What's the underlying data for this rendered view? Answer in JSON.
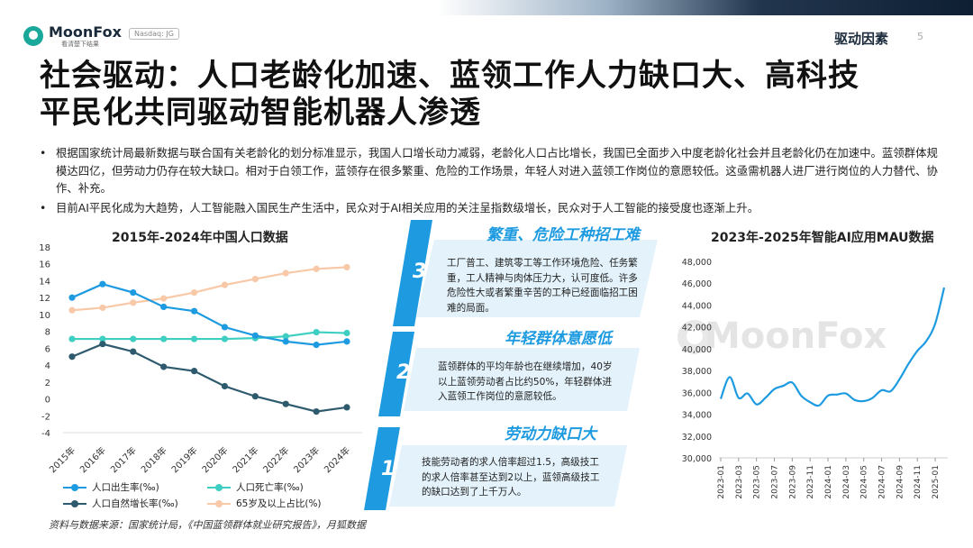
{
  "header": {
    "logo_name": "MoonFox",
    "logo_slogan": "看清楚下结果",
    "nasdaq": "Nasdaq: JG",
    "section": "驱动因素",
    "page": "5"
  },
  "title_lines": [
    "社会驱动：人口老龄化加速、蓝领工作人力缺口大、高科技",
    "平民化共同驱动智能机器人渗透"
  ],
  "bullets": [
    "根据国家统计局最新数据与联合国有关老龄化的划分标准显示，我国人口增长动力减弱，老龄化人口占比增长，我国已全面步入中度老龄化社会并且老龄化仍在加速中。蓝领群体规模达四亿，但劳动力仍存在较大缺口。相对于白领工作，蓝领存在很多繁重、危险的工作场景，年轻人对进入蓝领工作岗位的意愿较低。这亟需机器人进厂进行岗位的人力替代、协作、补充。",
    "目前AI平民化成为大趋势，人工智能融入国民生产生活中，民众对于AI相关应用的关注呈指数级增长，民众对于人工智能的接受度也逐渐上升。"
  ],
  "cards": [
    {
      "num": "3",
      "head": "繁重、危险工种招工难",
      "text": "工厂普工、建筑零工等工作环境危险、任务繁重，工人精神与肉体压力大，认可度低。许多危险性大或者繁重辛苦的工种已经面临招工困难的局面。"
    },
    {
      "num": "2",
      "head": "年轻群体意愿低",
      "text": "蓝领群体的平均年龄也在继续增加，40岁以上蓝领劳动者占比约50%，年轻群体进入蓝领工作岗位的意愿较低。"
    },
    {
      "num": "1",
      "head": "劳动力缺口大",
      "text": "技能劳动者的求人倍率超过1.5，高级技工的求人倍率甚至达到2以上，蓝领高级技工的缺口达到了上千万人。"
    }
  ],
  "source": "资料与数据来源：国家统计局，《中国蓝领群体就业研究报告》，月狐数据",
  "watermark": "MoonFox",
  "colors": {
    "birth": "#1e9be0",
    "death": "#3fcfc2",
    "natural": "#2e5a6e",
    "aged": "#f8c9a8",
    "mau": "#1e9be0",
    "accent": "#1e9be0"
  },
  "chart_data": [
    {
      "type": "line",
      "title": "2015年-2024年中国人口数据",
      "categories": [
        "2015年",
        "2016年",
        "2017年",
        "2018年",
        "2019年",
        "2020年",
        "2021年",
        "2022年",
        "2023年",
        "2024年"
      ],
      "ylim": [
        -4,
        18
      ],
      "yticks": [
        "18",
        "16",
        "14",
        "12",
        "10",
        "8",
        "6",
        "4",
        "2",
        "0",
        "-2",
        "-4"
      ],
      "series": [
        {
          "name": "人口出生率(‰)",
          "values": [
            12.0,
            13.6,
            12.6,
            10.9,
            10.4,
            8.5,
            7.5,
            6.8,
            6.4,
            6.8
          ]
        },
        {
          "name": "人口死亡率(‰)",
          "values": [
            7.1,
            7.1,
            7.1,
            7.1,
            7.1,
            7.1,
            7.2,
            7.4,
            7.9,
            7.8
          ]
        },
        {
          "name": "人口自然增长率(‰)",
          "values": [
            5.0,
            6.5,
            5.6,
            3.8,
            3.3,
            1.5,
            0.3,
            -0.6,
            -1.5,
            -1.0
          ]
        },
        {
          "name": "65岁及以上占比(%)",
          "values": [
            10.5,
            10.8,
            11.4,
            11.9,
            12.6,
            13.5,
            14.2,
            14.9,
            15.4,
            15.6
          ]
        }
      ]
    },
    {
      "type": "line",
      "title": "2023年-2025年智能AI应用MAU数据",
      "ylim": [
        30000,
        48000
      ],
      "yticks": [
        "48,000",
        "46,000",
        "44,000",
        "42,000",
        "40,000",
        "38,000",
        "36,000",
        "34,000",
        "32,000",
        "30,000"
      ],
      "xticks": [
        "2023-01",
        "2023-03",
        "2023-05",
        "2023-07",
        "2023-09",
        "2023-11",
        "2024-01",
        "2024-03",
        "2024-05",
        "2024-07",
        "2024-09",
        "2024-11",
        "2025-01"
      ],
      "x": [
        "2023-01",
        "2023-02",
        "2023-03",
        "2023-04",
        "2023-05",
        "2023-06",
        "2023-07",
        "2023-08",
        "2023-09",
        "2023-10",
        "2023-11",
        "2023-12",
        "2024-01",
        "2024-02",
        "2024-03",
        "2024-04",
        "2024-05",
        "2024-06",
        "2024-07",
        "2024-08",
        "2024-09",
        "2024-10",
        "2024-11",
        "2024-12",
        "2025-01",
        "2025-02"
      ],
      "values": [
        35400,
        37400,
        35500,
        35900,
        34900,
        35500,
        36300,
        36600,
        36900,
        35700,
        35100,
        34800,
        35700,
        35800,
        35900,
        35300,
        35200,
        35500,
        36200,
        36100,
        37200,
        38600,
        39800,
        40700,
        42300,
        45600
      ]
    }
  ]
}
